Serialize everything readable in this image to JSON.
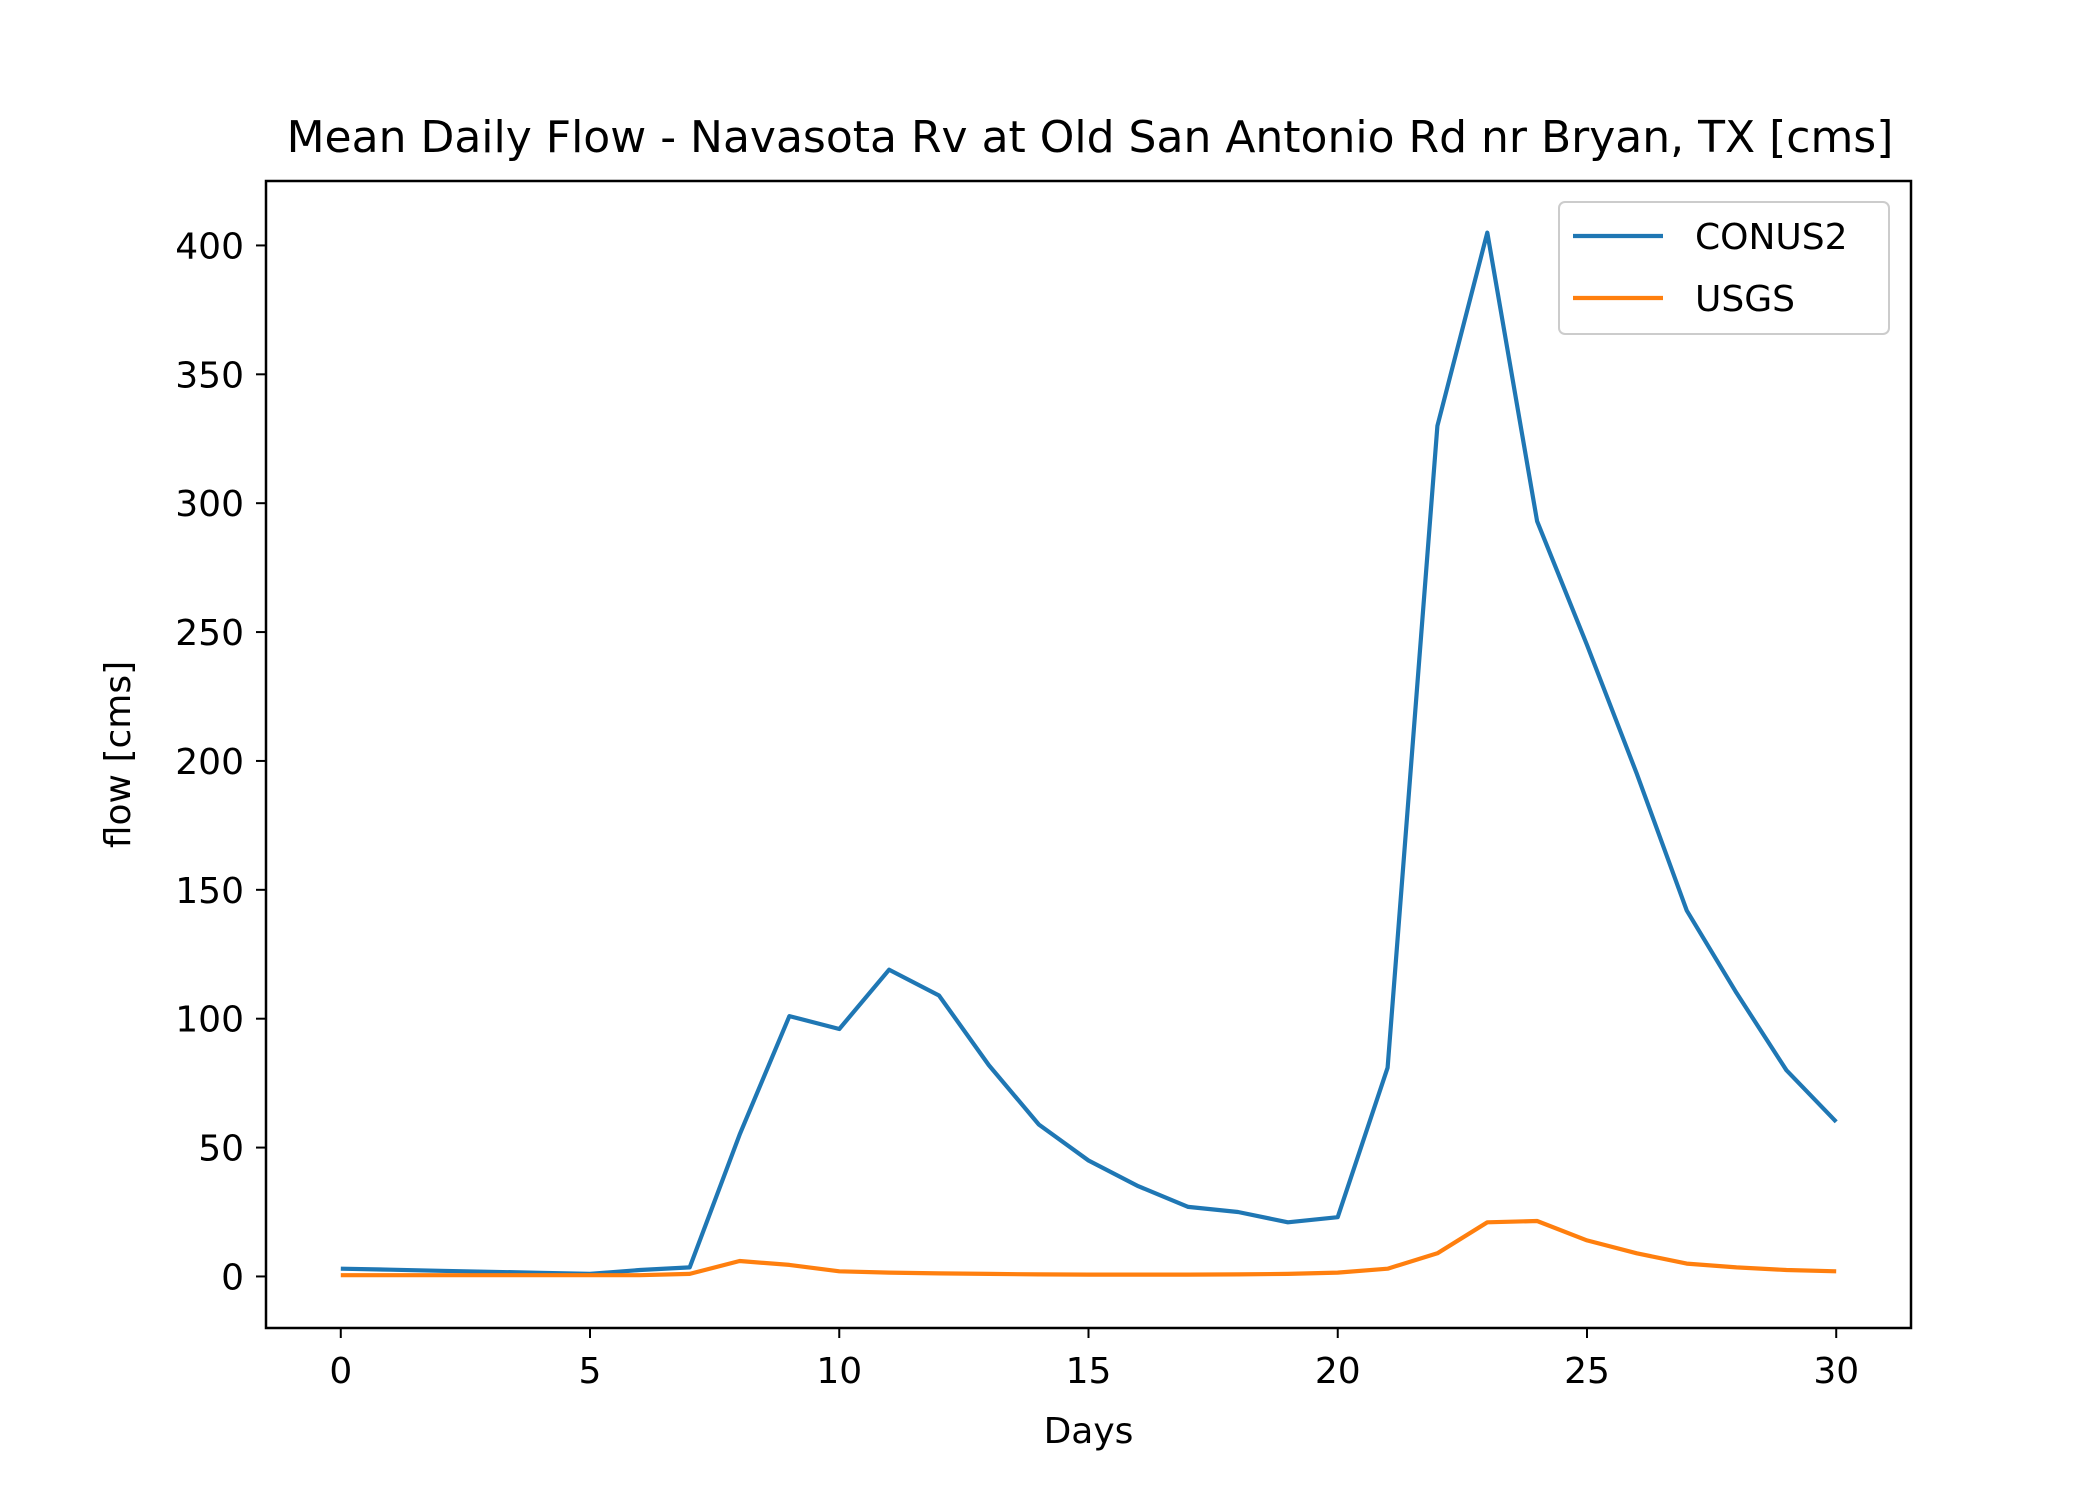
{
  "chart_data": {
    "type": "line",
    "title": "Mean Daily Flow - Navasota Rv at Old San Antonio Rd nr Bryan, TX [cms]",
    "xlabel": "Days",
    "ylabel": "flow [cms]",
    "xlim": [
      -1.5,
      31.5
    ],
    "ylim": [
      -20,
      425
    ],
    "xticks": [
      0,
      5,
      10,
      15,
      20,
      25,
      30
    ],
    "yticks": [
      0,
      50,
      100,
      150,
      200,
      250,
      300,
      350,
      400
    ],
    "grid": false,
    "legend_position": "upper right",
    "x": [
      0,
      1,
      2,
      3,
      4,
      5,
      6,
      7,
      8,
      9,
      10,
      11,
      12,
      13,
      14,
      15,
      16,
      17,
      18,
      19,
      20,
      21,
      22,
      23,
      24,
      25,
      26,
      27,
      28,
      29,
      30
    ],
    "series": [
      {
        "name": "CONUS2",
        "color": "#1f77b4",
        "values": [
          3,
          2.6,
          2.2,
          1.8,
          1.4,
          1,
          2.5,
          3.5,
          55,
          101,
          96,
          119,
          109,
          82,
          59,
          45,
          35,
          27,
          25,
          21,
          23,
          81,
          330,
          405,
          293,
          245,
          195,
          142,
          110,
          80,
          60
        ]
      },
      {
        "name": "USGS",
        "color": "#ff7f0e",
        "values": [
          0.5,
          0.5,
          0.5,
          0.5,
          0.5,
          0.5,
          0.5,
          1,
          6,
          4.5,
          2,
          1.5,
          1.2,
          1,
          0.8,
          0.7,
          0.7,
          0.7,
          0.8,
          1,
          1.5,
          3,
          9,
          21,
          21.5,
          14,
          9,
          5,
          3.5,
          2.5,
          2
        ]
      }
    ]
  }
}
